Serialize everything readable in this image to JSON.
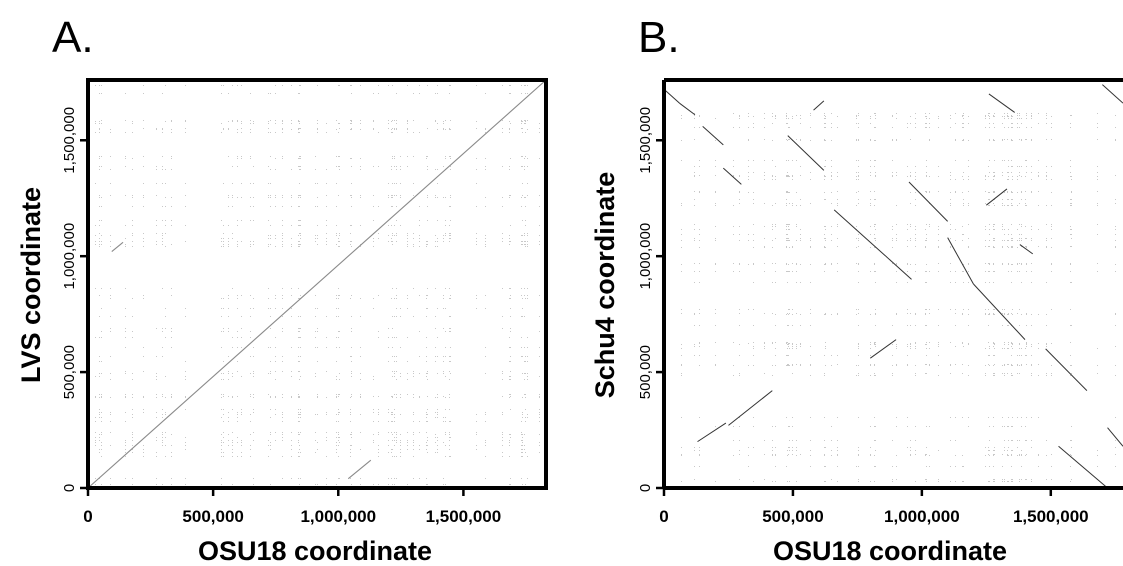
{
  "chart_data": [
    {
      "type": "scatter",
      "panel": "A.",
      "title": "",
      "xlabel": "OSU18 coordinate",
      "ylabel": "LVS coordinate",
      "xlim": [
        0,
        1830000
      ],
      "ylim": [
        0,
        1760000
      ],
      "xticks": [
        0,
        500000,
        1000000,
        1500000
      ],
      "xtick_labels": [
        "0",
        "500,000",
        "1,000,000",
        "1,500,000"
      ],
      "yticks": [
        0,
        500000,
        1000000,
        1500000
      ],
      "ytick_labels": [
        "0",
        "500,000",
        "1,000,000",
        "1,500,000"
      ],
      "grid": false,
      "series": [
        {
          "segments": [
            {
              "x": [
                0,
                1830000
              ],
              "y": [
                0,
                1760000
              ]
            },
            {
              "x": [
                95000,
                140000
              ],
              "y": [
                1020000,
                1060000
              ]
            },
            {
              "x": [
                1040000,
                1130000
              ],
              "y": [
                40000,
                120000
              ]
            }
          ]
        }
      ]
    },
    {
      "type": "scatter",
      "panel": "B.",
      "title": "",
      "xlabel": "OSU18 coordinate",
      "ylabel": "Schu4 coordinate",
      "xlim": [
        0,
        1780000
      ],
      "ylim": [
        0,
        1760000
      ],
      "xticks": [
        0,
        500000,
        1000000,
        1500000
      ],
      "xtick_labels": [
        "0",
        "500,000",
        "1,000,000",
        "1,500,000"
      ],
      "yticks": [
        0,
        500000,
        1000000,
        1500000
      ],
      "ytick_labels": [
        "0",
        "500,000",
        "1,000,000",
        "1,500,000"
      ],
      "grid": false,
      "series": [
        {
          "segments": [
            {
              "x": [
                0,
                60000
              ],
              "y": [
                1720000,
                1660000
              ]
            },
            {
              "x": [
                60000,
                120000
              ],
              "y": [
                1660000,
                1610000
              ]
            },
            {
              "x": [
                150000,
                230000
              ],
              "y": [
                1560000,
                1480000
              ]
            },
            {
              "x": [
                230000,
                300000
              ],
              "y": [
                1380000,
                1310000
              ]
            },
            {
              "x": [
                480000,
                620000
              ],
              "y": [
                1520000,
                1370000
              ]
            },
            {
              "x": [
                660000,
                860000
              ],
              "y": [
                1200000,
                1000000
              ]
            },
            {
              "x": [
                860000,
                960000
              ],
              "y": [
                1000000,
                900000
              ]
            },
            {
              "x": [
                950000,
                1100000
              ],
              "y": [
                1320000,
                1150000
              ]
            },
            {
              "x": [
                1100000,
                1200000
              ],
              "y": [
                1080000,
                880000
              ]
            },
            {
              "x": [
                1200000,
                1400000
              ],
              "y": [
                880000,
                640000
              ]
            },
            {
              "x": [
                1480000,
                1640000
              ],
              "y": [
                600000,
                420000
              ]
            },
            {
              "x": [
                1530000,
                1720000
              ],
              "y": [
                180000,
                0
              ]
            },
            {
              "x": [
                800000,
                900000
              ],
              "y": [
                560000,
                640000
              ]
            },
            {
              "x": [
                250000,
                420000
              ],
              "y": [
                270000,
                420000
              ]
            },
            {
              "x": [
                130000,
                240000
              ],
              "y": [
                200000,
                280000
              ]
            },
            {
              "x": [
                580000,
                620000
              ],
              "y": [
                1630000,
                1670000
              ]
            },
            {
              "x": [
                1250000,
                1330000
              ],
              "y": [
                1220000,
                1290000
              ]
            },
            {
              "x": [
                1260000,
                1360000
              ],
              "y": [
                1700000,
                1620000
              ]
            },
            {
              "x": [
                1380000,
                1430000
              ],
              "y": [
                1050000,
                1010000
              ]
            },
            {
              "x": [
                1700000,
                1780000
              ],
              "y": [
                1740000,
                1660000
              ]
            },
            {
              "x": [
                1720000,
                1780000
              ],
              "y": [
                260000,
                180000
              ]
            }
          ]
        }
      ]
    }
  ]
}
